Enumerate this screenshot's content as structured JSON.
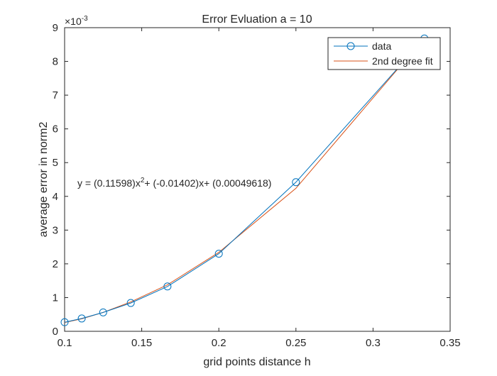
{
  "chart_data": {
    "type": "line",
    "title": "Error Evluation a = 10",
    "xlabel": "grid points distance h",
    "ylabel": "average error in norm2",
    "y_exponent_label": "×10",
    "y_exponent_power": "-3",
    "xlim": [
      0.1,
      0.35
    ],
    "ylim": [
      0,
      9
    ],
    "xticks": [
      "0.1",
      "0.15",
      "0.2",
      "0.25",
      "0.3",
      "0.35"
    ],
    "yticks": [
      "0",
      "1",
      "2",
      "3",
      "4",
      "5",
      "6",
      "7",
      "8",
      "9"
    ],
    "grid": false,
    "legend_location": "top-right",
    "series": [
      {
        "name": "data",
        "style": "line-with-circle-markers",
        "color": "#0072BD",
        "x": [
          0.1,
          0.1111,
          0.125,
          0.1429,
          0.1667,
          0.2,
          0.25,
          0.3333
        ],
        "y": [
          0.27,
          0.38,
          0.56,
          0.84,
          1.33,
          2.3,
          4.42,
          8.68
        ]
      },
      {
        "name": "2nd degree fit",
        "style": "line",
        "color": "#D95319",
        "x": [
          0.1,
          0.1111,
          0.125,
          0.1429,
          0.1667,
          0.2,
          0.25,
          0.3333
        ],
        "y": [
          0.26,
          0.37,
          0.56,
          0.87,
          1.38,
          2.34,
          4.24,
          8.7
        ]
      }
    ],
    "annotation": {
      "prefix": "y = (0.11598)x",
      "superscript": "2",
      "suffix": "+ (-0.01402)x+ (0.00049618)"
    }
  }
}
